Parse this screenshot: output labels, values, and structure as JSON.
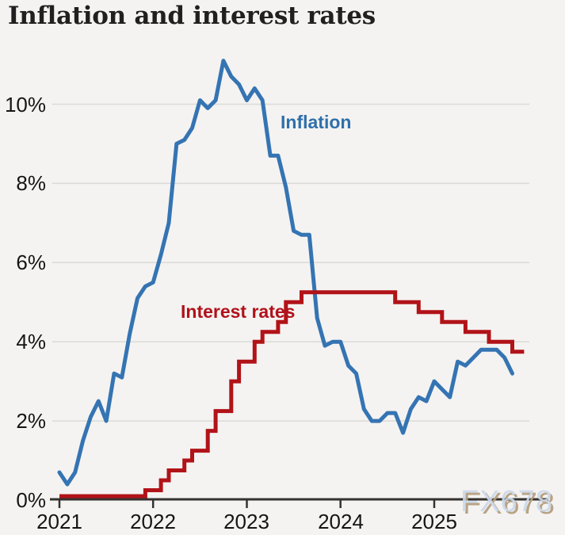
{
  "title": "Inflation and interest rates",
  "watermark": "FX678",
  "colors": {
    "background": "#f4f3f1",
    "grid": "#dadad7",
    "axis": "#35322f",
    "inflation": "#3574b3",
    "interest": "#b11318",
    "inflation_label": "#2f6fab",
    "interest_label": "#b0121b",
    "tick_text": "#151515",
    "title_text": "#211f1f",
    "watermark_text": "#cbd8ea",
    "watermark_shadow": "#b49d7c"
  },
  "chart_data": {
    "type": "line",
    "title": "Inflation and interest rates",
    "x_range": [
      "2021-01",
      "2026-01"
    ],
    "ylim": [
      0,
      11.6
    ],
    "grid": true,
    "legend_position": "inline-annotations",
    "yticks": {
      "values": [
        0,
        2,
        4,
        6,
        8,
        10
      ],
      "labels": [
        "0%",
        "2%",
        "4%",
        "6%",
        "8%",
        "10%"
      ]
    },
    "xticks": {
      "years": [
        "2021",
        "2022",
        "2023",
        "2024",
        "2025"
      ]
    },
    "series": [
      {
        "name": "Inflation",
        "kind": "line",
        "color": "#3574b3",
        "start": "2021-01",
        "frequency": "monthly",
        "unit": "%",
        "values": [
          0.7,
          0.4,
          0.7,
          1.5,
          2.1,
          2.5,
          2.0,
          3.2,
          3.1,
          4.2,
          5.1,
          5.4,
          5.5,
          6.2,
          7.0,
          9.0,
          9.1,
          9.4,
          10.1,
          9.9,
          10.1,
          11.1,
          10.7,
          10.5,
          10.1,
          10.4,
          10.1,
          8.7,
          8.7,
          7.9,
          6.8,
          6.7,
          6.7,
          4.6,
          3.9,
          4.0,
          4.0,
          3.4,
          3.2,
          2.3,
          2.0,
          2.0,
          2.2,
          2.2,
          1.7,
          2.3,
          2.6,
          2.5,
          3.0,
          2.8,
          2.6,
          3.5,
          3.4,
          3.6,
          3.8,
          3.8,
          3.8,
          3.6,
          3.2
        ]
      },
      {
        "name": "Interest rates",
        "kind": "step",
        "color": "#b11318",
        "unit": "%",
        "end": "2025-12",
        "changes": [
          [
            "2021-01",
            0.1
          ],
          [
            "2021-12",
            0.25
          ],
          [
            "2022-02",
            0.5
          ],
          [
            "2022-03",
            0.75
          ],
          [
            "2022-05",
            1.0
          ],
          [
            "2022-06",
            1.25
          ],
          [
            "2022-08",
            1.75
          ],
          [
            "2022-09",
            2.25
          ],
          [
            "2022-11",
            3.0
          ],
          [
            "2022-12",
            3.5
          ],
          [
            "2023-02",
            4.0
          ],
          [
            "2023-03",
            4.25
          ],
          [
            "2023-05",
            4.5
          ],
          [
            "2023-06",
            5.0
          ],
          [
            "2023-08",
            5.25
          ],
          [
            "2024-08",
            5.0
          ],
          [
            "2024-11",
            4.75
          ],
          [
            "2025-02",
            4.5
          ],
          [
            "2025-05",
            4.25
          ],
          [
            "2025-08",
            4.0
          ],
          [
            "2025-11",
            3.75
          ]
        ]
      }
    ]
  }
}
